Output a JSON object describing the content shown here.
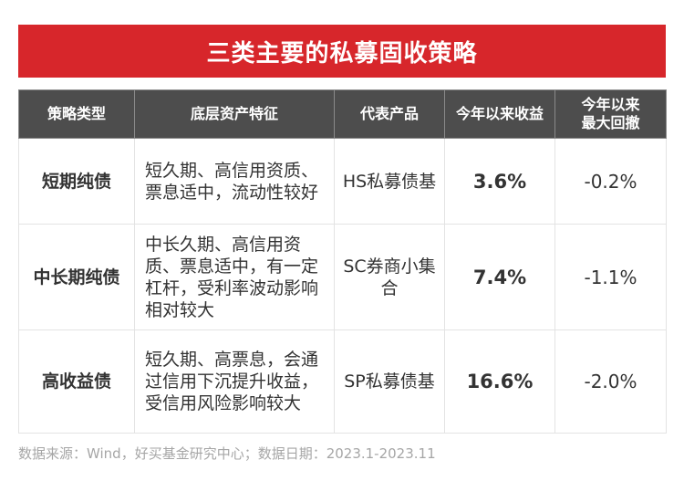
{
  "title": "三类主要的私募固收策略",
  "table": {
    "headers": [
      "策略类型",
      "底层资产特征",
      "代表产品",
      "今年以来收益",
      "今年以来\n最大回撤"
    ],
    "rows": [
      {
        "strategy": "短期纯债",
        "features": "短久期、高信用资质、票息适中，流动性较好",
        "product": "HS私募债基",
        "ytd_return": "3.6%",
        "max_drawdown": "-0.2%"
      },
      {
        "strategy": "中长期纯债",
        "features": "中长久期、高信用资质、票息适中，有一定杠杆，受利率波动影响相对较大",
        "product": "SC券商小集合",
        "ytd_return": "7.4%",
        "max_drawdown": "-1.1%"
      },
      {
        "strategy": "高收益债",
        "features": "短久期、高票息，会通过信用下沉提升收益，受信用风险影响较大",
        "product": "SP私募债基",
        "ytd_return": "16.6%",
        "max_drawdown": "-2.0%"
      }
    ]
  },
  "source": "数据来源：Wind，好买基金研究中心；数据日期：2023.1-2023.11",
  "colors": {
    "accent": "#d7262b",
    "header_bg": "#4d4d4d",
    "border": "#e3e3e3",
    "source_text": "#a6a6a6"
  }
}
